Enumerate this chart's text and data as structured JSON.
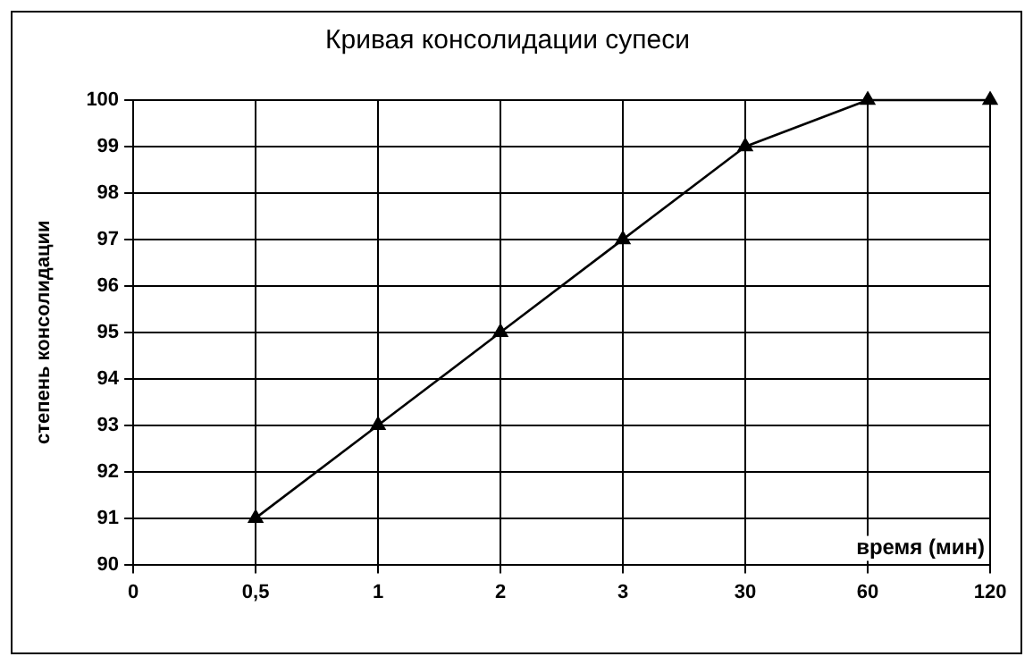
{
  "chart_data": {
    "type": "line",
    "title": "Кривая консолидации супеси",
    "xlabel": "время (мин)",
    "ylabel": "степень консолидации",
    "categories": [
      "0",
      "0,5",
      "1",
      "2",
      "3",
      "30",
      "60",
      "120"
    ],
    "series": [
      {
        "color": "#000000",
        "values": [
          null,
          91,
          93,
          95,
          97,
          99,
          100,
          100
        ]
      }
    ],
    "ylim": [
      90,
      100
    ],
    "yticks": [
      90,
      91,
      92,
      93,
      94,
      95,
      96,
      97,
      98,
      99,
      100
    ],
    "grid": true,
    "legend": false,
    "marker": "triangle",
    "line_style": "solid"
  }
}
